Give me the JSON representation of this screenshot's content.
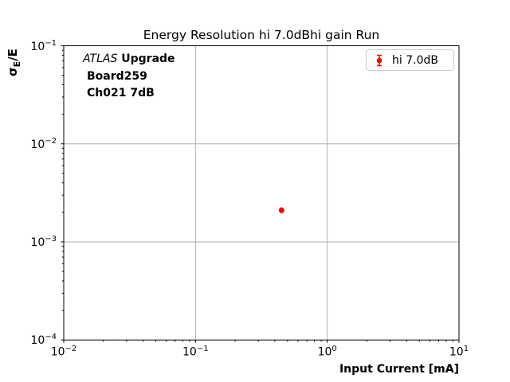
{
  "title": "Energy Resolution hi 7.0dBhi gain Run",
  "annotation": {
    "experiment": "ATLAS",
    "line1_rest": " Upgrade",
    "line2": "Board259",
    "line3": "Ch021 7dB"
  },
  "legend": {
    "entries": [
      {
        "label": "hi 7.0dB",
        "marker": "red-point-with-error-bar",
        "color": "#ff0000"
      }
    ]
  },
  "xaxis": {
    "label": "Input Current [mA]",
    "ticks": [
      {
        "base": "10",
        "exp": "−2"
      },
      {
        "base": "10",
        "exp": "−1"
      },
      {
        "base": "10",
        "exp": "0"
      },
      {
        "base": "10",
        "exp": "1"
      }
    ]
  },
  "yaxis": {
    "label_base": "σ",
    "label_sub": "E",
    "label_suffix": "/E",
    "ticks": [
      {
        "base": "10",
        "exp": "−1"
      },
      {
        "base": "10",
        "exp": "−2"
      },
      {
        "base": "10",
        "exp": "−3"
      },
      {
        "base": "10",
        "exp": "−4"
      }
    ]
  },
  "colors": {
    "series": "#ff0000",
    "grid": "#b0b0b0",
    "axis": "#000000",
    "legend_edge": "#cccccc",
    "background": "#ffffff"
  },
  "chart_data": {
    "type": "scatter",
    "title": "Energy Resolution hi 7.0dBhi gain Run",
    "xlabel": "Input Current [mA]",
    "ylabel": "sigma_E/E",
    "xscale": "log",
    "yscale": "log",
    "xlim": [
      0.01,
      10
    ],
    "ylim": [
      0.0001,
      0.1
    ],
    "grid": true,
    "legend_position": "upper right",
    "annotations": [
      "ATLAS Upgrade",
      "Board259",
      "Ch021 7dB"
    ],
    "series": [
      {
        "name": "hi 7.0dB",
        "color": "#ff0000",
        "marker": "circle-with-errorbar",
        "points": [
          {
            "x": 0.45,
            "y": 0.0021
          }
        ]
      }
    ]
  }
}
